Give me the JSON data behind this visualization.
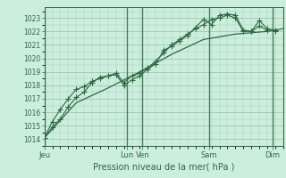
{
  "bg_color": "#cceedd",
  "grid_color_major": "#99bbaa",
  "grid_color_minor": "#aaccbb",
  "line_color": "#2d6a3f",
  "xlabel_label": "Pression niveau de la mer( hPa )",
  "ylim": [
    1013.5,
    1023.8
  ],
  "yticks": [
    1014,
    1015,
    1016,
    1017,
    1018,
    1019,
    1020,
    1021,
    1022,
    1023
  ],
  "day_labels": [
    "Jeu",
    "Lun",
    "Ven",
    "Sam",
    "Dim"
  ],
  "day_positions": [
    0,
    62,
    74,
    124,
    172
  ],
  "total_hours": 180,
  "line1_x": [
    0,
    6,
    12,
    18,
    24,
    30,
    36,
    42,
    48,
    54,
    60,
    66,
    72,
    78,
    84,
    90,
    96,
    102,
    108,
    114,
    120,
    126,
    132,
    138,
    144,
    150,
    156,
    162,
    168,
    174
  ],
  "line1_y": [
    1014.1,
    1014.9,
    1015.5,
    1016.4,
    1017.1,
    1017.5,
    1018.2,
    1018.6,
    1018.7,
    1018.8,
    1018.0,
    1018.4,
    1018.7,
    1019.2,
    1019.6,
    1020.6,
    1020.9,
    1021.3,
    1021.7,
    1022.3,
    1022.9,
    1022.5,
    1023.2,
    1023.3,
    1023.2,
    1022.1,
    1022.0,
    1022.8,
    1022.2,
    1022.1
  ],
  "line2_x": [
    0,
    6,
    12,
    18,
    24,
    30,
    36,
    42,
    48,
    54,
    60,
    66,
    72,
    78,
    84,
    90,
    96,
    102,
    108,
    114,
    120,
    126,
    132,
    138,
    144,
    150,
    156,
    162,
    168,
    174
  ],
  "line2_y": [
    1014.1,
    1015.3,
    1016.2,
    1017.0,
    1017.7,
    1017.9,
    1018.3,
    1018.5,
    1018.7,
    1018.9,
    1018.2,
    1018.7,
    1018.9,
    1019.3,
    1019.8,
    1020.4,
    1021.0,
    1021.4,
    1021.8,
    1022.2,
    1022.5,
    1022.9,
    1023.0,
    1023.2,
    1023.0,
    1022.0,
    1022.0,
    1022.4,
    1022.1,
    1022.0
  ],
  "line3_x": [
    0,
    24,
    48,
    72,
    96,
    120,
    144,
    168,
    180
  ],
  "line3_y": [
    1014.1,
    1016.7,
    1017.8,
    1019.0,
    1020.3,
    1021.4,
    1021.8,
    1022.0,
    1022.2
  ]
}
